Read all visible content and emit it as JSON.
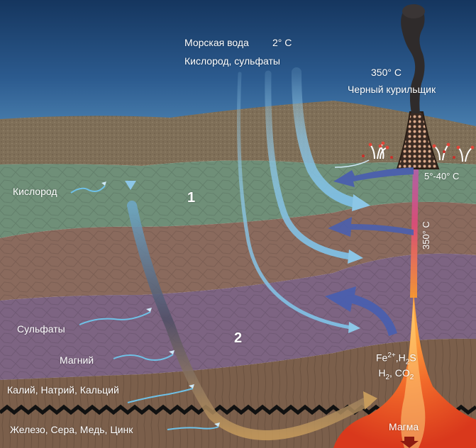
{
  "labels": {
    "seawater": "Морская вода",
    "seawater_temp": "2° C",
    "oxygen_sulfates": "Кислород, сульфаты",
    "smoker_temp": "350° C",
    "smoker_name": "Черный курильщик",
    "vent_temp": "5°-40° C",
    "channel_temp": "350° C",
    "zone_1": "1",
    "zone_2": "2",
    "oxygen": "Кислород",
    "sulfates": "Сульфаты",
    "magnesium": "Магний",
    "k_na_ca": "Калий, Натрий, Кальций",
    "fe_s_cu_zn": "Железо, Сера, Медь, Цинк",
    "magma": "Магма"
  },
  "chemistry": {
    "fe_base": "Fe",
    "fe_sup": "2+",
    "comma1": ",",
    "h_base": "H",
    "h_sub": "2",
    "s_tail": "S",
    "h2_base": "H",
    "h2_sub": "2",
    "comma2": ", ",
    "co_base": "CO",
    "co_sub": "2"
  },
  "colors": {
    "ocean_top": "#1b3f73",
    "ocean_bottom": "#3f76a8",
    "sediment": "#7f6f58",
    "green_layer": "#6f8f78",
    "brown_layer": "#8a6a5d",
    "purple_layer": "#7d6482",
    "basalt": "#7b5f4b",
    "magma": "#e8491d",
    "inflow_arrow": "#8fc7e6",
    "outflow_arrow": "#4a5fae"
  }
}
